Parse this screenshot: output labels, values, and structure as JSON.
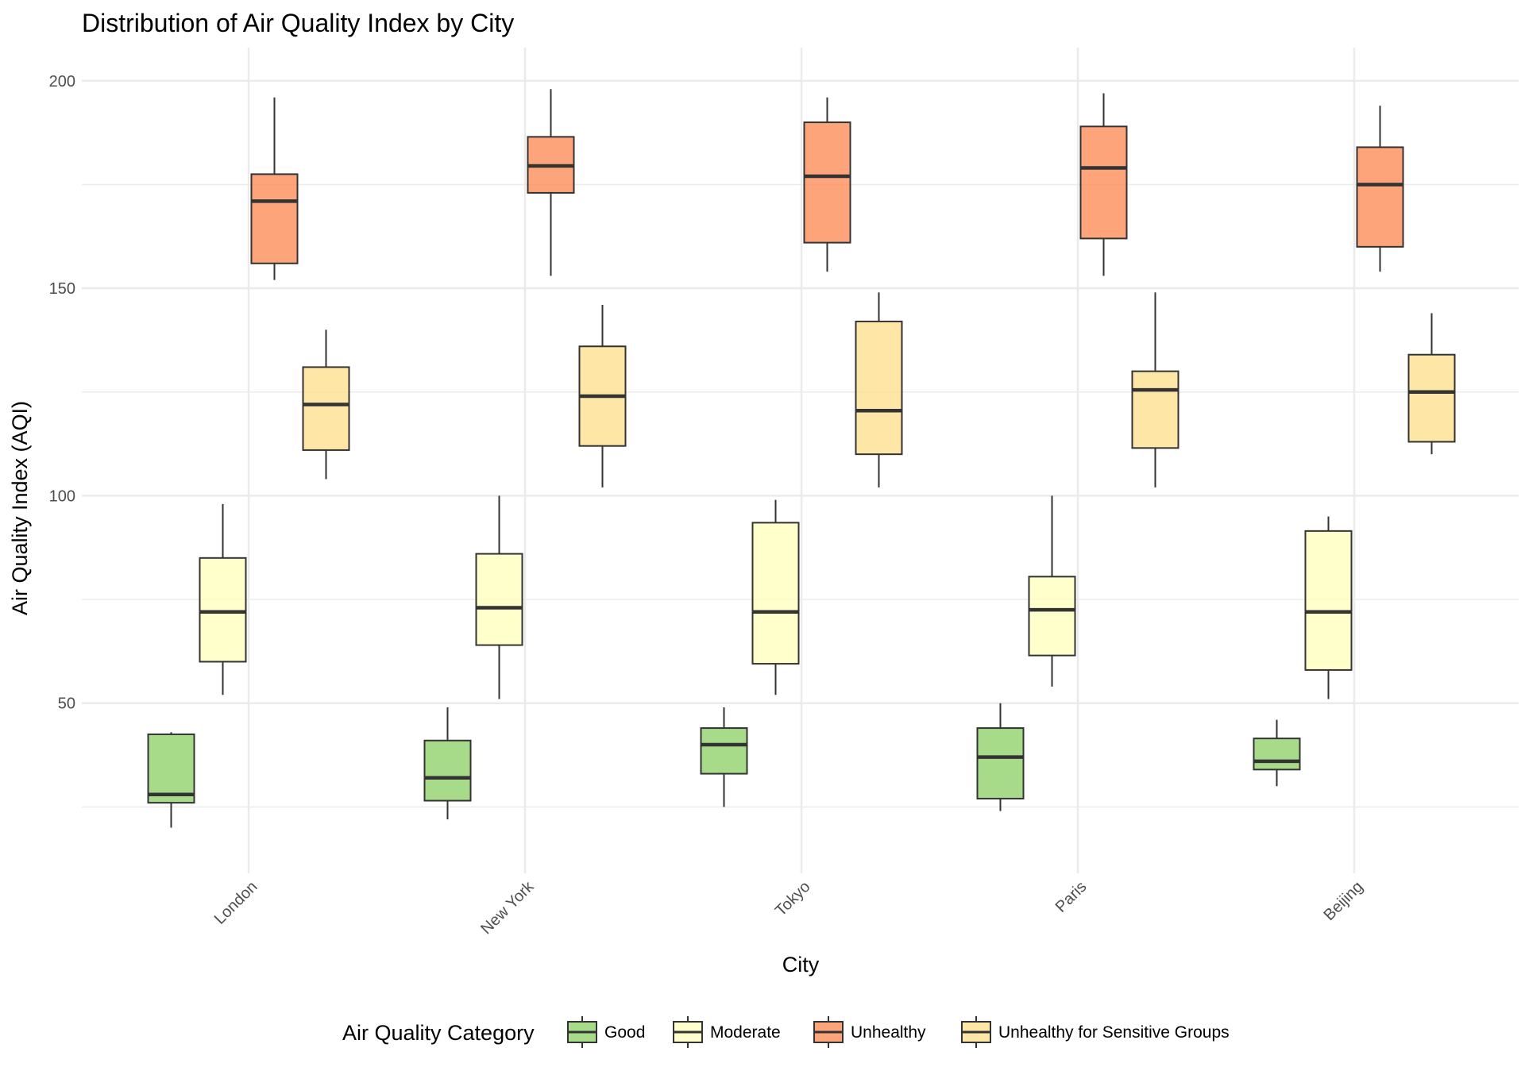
{
  "chart_data": {
    "type": "boxplot",
    "title": "Distribution of Air Quality Index by City",
    "xlabel": "City",
    "ylabel": "Air Quality Index (AQI)",
    "ylim": [
      9,
      208
    ],
    "yticks": [
      50,
      100,
      150,
      200
    ],
    "grid": true,
    "legend_position": "bottom",
    "legend_title": "Air Quality Category",
    "categories": [
      "London",
      "New York",
      "Tokyo",
      "Paris",
      "Beijing"
    ],
    "series": [
      {
        "name": "Good",
        "color": "#91d26b",
        "boxes": [
          {
            "min": 20,
            "q1": 26,
            "median": 28,
            "q3": 42.5,
            "max": 43
          },
          {
            "min": 22,
            "q1": 26.5,
            "median": 32,
            "q3": 41,
            "max": 49
          },
          {
            "min": 25,
            "q1": 33,
            "median": 40,
            "q3": 44,
            "max": 49
          },
          {
            "min": 24,
            "q1": 27,
            "median": 37,
            "q3": 44,
            "max": 50
          },
          {
            "min": 30,
            "q1": 34,
            "median": 36,
            "q3": 41.5,
            "max": 46
          }
        ]
      },
      {
        "name": "Moderate",
        "color": "#ffffbf",
        "boxes": [
          {
            "min": 52,
            "q1": 60,
            "median": 72,
            "q3": 85,
            "max": 98
          },
          {
            "min": 51,
            "q1": 64,
            "median": 73,
            "q3": 86,
            "max": 100
          },
          {
            "min": 52,
            "q1": 59.5,
            "median": 72,
            "q3": 93.5,
            "max": 99
          },
          {
            "min": 54,
            "q1": 61.5,
            "median": 72.5,
            "q3": 80.5,
            "max": 100
          },
          {
            "min": 51,
            "q1": 58,
            "median": 72,
            "q3": 91.5,
            "max": 95
          }
        ]
      },
      {
        "name": "Unhealthy",
        "color": "#fc8d59",
        "boxes": [
          {
            "min": 152,
            "q1": 156,
            "median": 171,
            "q3": 177.5,
            "max": 196
          },
          {
            "min": 153,
            "q1": 173,
            "median": 179.5,
            "q3": 186.5,
            "max": 198
          },
          {
            "min": 154,
            "q1": 161,
            "median": 177,
            "q3": 190,
            "max": 196
          },
          {
            "min": 153,
            "q1": 162,
            "median": 179,
            "q3": 189,
            "max": 197
          },
          {
            "min": 154,
            "q1": 160,
            "median": 175,
            "q3": 184,
            "max": 194
          }
        ]
      },
      {
        "name": "Unhealthy for Sensitive Groups",
        "color": "#fee090",
        "boxes": [
          {
            "min": 104,
            "q1": 111,
            "median": 122,
            "q3": 131,
            "max": 140
          },
          {
            "min": 102,
            "q1": 112,
            "median": 124,
            "q3": 136,
            "max": 146
          },
          {
            "min": 102,
            "q1": 110,
            "median": 120.5,
            "q3": 142,
            "max": 149
          },
          {
            "min": 102,
            "q1": 111.5,
            "median": 125.5,
            "q3": 130,
            "max": 149
          },
          {
            "min": 110,
            "q1": 113,
            "median": 125,
            "q3": 134,
            "max": 144
          }
        ]
      }
    ]
  }
}
